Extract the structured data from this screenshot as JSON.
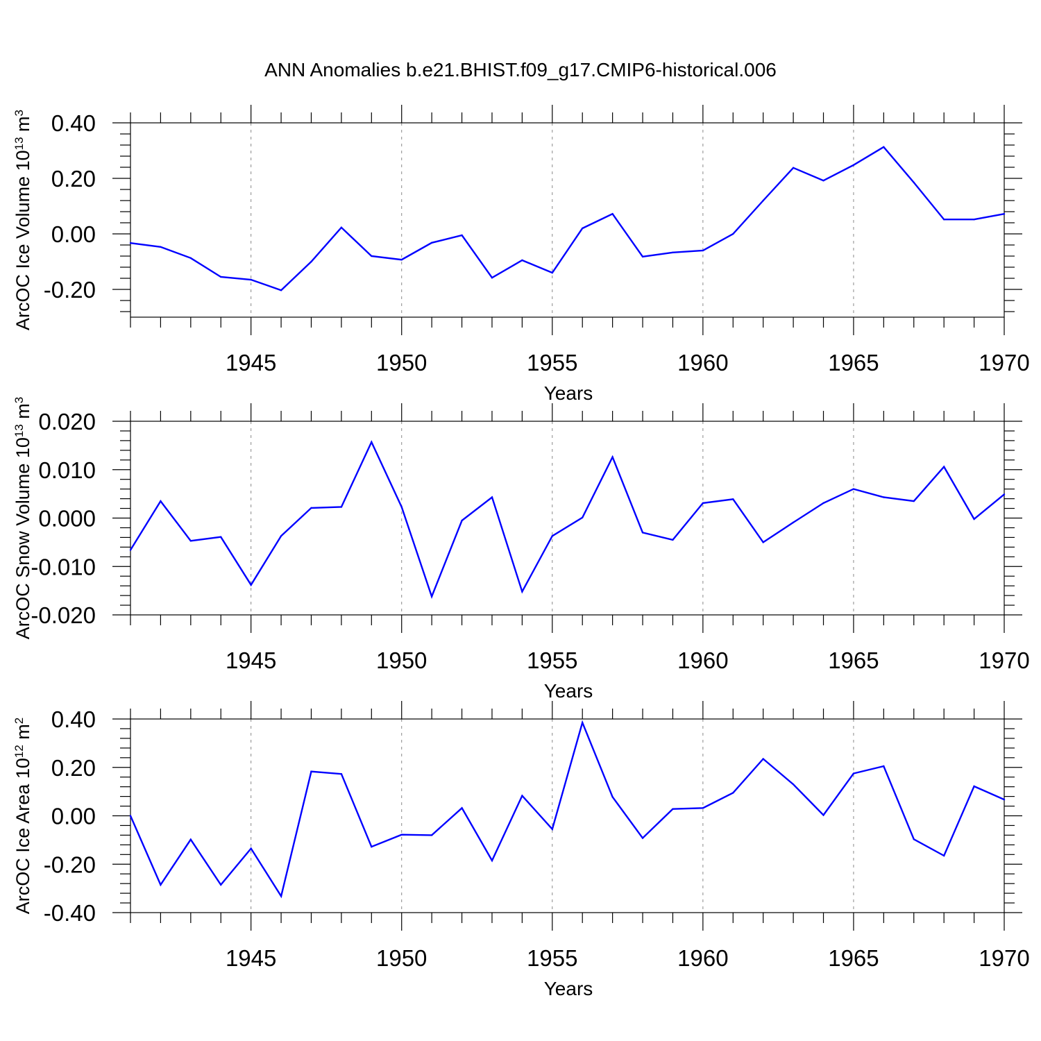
{
  "title": "ANN Anomalies b.e21.BHIST.f09_g17.CMIP6-historical.006",
  "colors": {
    "line": "#0000ff",
    "axis": "#000000",
    "vgrid": "#888888"
  },
  "chart_data": [
    {
      "type": "line",
      "ylabel": {
        "main": "ArcOC Ice Volume 10",
        "exp1": "13",
        "mid": " m",
        "exp2": "3"
      },
      "xlabel": "Years",
      "xlim": [
        1941,
        1970
      ],
      "ylim": [
        -0.3,
        0.4
      ],
      "yticks": [
        -0.2,
        0.0,
        0.2,
        0.4
      ],
      "ytick_labels": [
        "-0.20",
        "0.00",
        "0.20",
        "0.40"
      ],
      "xticks": [
        1945,
        1950,
        1955,
        1960,
        1965,
        1970
      ],
      "xtick_labels": [
        "1945",
        "1950",
        "1955",
        "1960",
        "1965",
        "1970"
      ],
      "vgrid": [
        1945,
        1950,
        1955,
        1960,
        1965
      ],
      "x": [
        1941,
        1942,
        1943,
        1944,
        1945,
        1946,
        1947,
        1948,
        1949,
        1950,
        1951,
        1952,
        1953,
        1954,
        1955,
        1956,
        1957,
        1958,
        1959,
        1960,
        1961,
        1962,
        1963,
        1964,
        1965,
        1966,
        1967,
        1968,
        1969,
        1970
      ],
      "values": [
        -0.033,
        -0.047,
        -0.087,
        -0.155,
        -0.165,
        -0.203,
        -0.1,
        0.023,
        -0.08,
        -0.093,
        -0.032,
        -0.005,
        -0.158,
        -0.095,
        -0.14,
        0.02,
        0.072,
        -0.082,
        -0.067,
        -0.06,
        0.0,
        0.12,
        0.238,
        0.192,
        0.248,
        0.313,
        0.185,
        0.052,
        0.052,
        0.072
      ]
    },
    {
      "type": "line",
      "ylabel": {
        "main": "ArcOC Snow Volume 10",
        "exp1": "13",
        "mid": " m",
        "exp2": "3"
      },
      "xlabel": "Years",
      "xlim": [
        1941,
        1970
      ],
      "ylim": [
        -0.02,
        0.02
      ],
      "yticks": [
        -0.02,
        -0.01,
        0.0,
        0.01,
        0.02
      ],
      "ytick_labels": [
        "-0.020",
        "-0.010",
        "0.000",
        "0.010",
        "0.020"
      ],
      "xticks": [
        1945,
        1950,
        1955,
        1960,
        1965,
        1970
      ],
      "xtick_labels": [
        "1945",
        "1950",
        "1955",
        "1960",
        "1965",
        "1970"
      ],
      "vgrid": [
        1945,
        1950,
        1955,
        1960,
        1965
      ],
      "x": [
        1941,
        1942,
        1943,
        1944,
        1945,
        1946,
        1947,
        1948,
        1949,
        1950,
        1951,
        1952,
        1953,
        1954,
        1955,
        1956,
        1957,
        1958,
        1959,
        1960,
        1961,
        1962,
        1963,
        1964,
        1965,
        1966,
        1967,
        1968,
        1969,
        1970
      ],
      "values": [
        -0.0066,
        0.0035,
        -0.0047,
        -0.0039,
        -0.0138,
        -0.0037,
        0.0021,
        0.0023,
        0.0157,
        0.0023,
        -0.0162,
        -0.0005,
        0.0043,
        -0.0152,
        -0.0037,
        0.0001,
        0.0126,
        -0.003,
        -0.0045,
        0.0031,
        0.0039,
        -0.005,
        -0.0009,
        0.0031,
        0.006,
        0.0043,
        0.0035,
        0.0106,
        -0.0002,
        0.0049
      ]
    },
    {
      "type": "line",
      "ylabel": {
        "main": "ArcOC Ice Area 10",
        "exp1": "12",
        "mid": " m",
        "exp2": "2"
      },
      "xlabel": "Years",
      "xlim": [
        1941,
        1970
      ],
      "ylim": [
        -0.4,
        0.4
      ],
      "yticks": [
        -0.4,
        -0.2,
        0.0,
        0.2,
        0.4
      ],
      "ytick_labels": [
        "-0.40",
        "-0.20",
        "0.00",
        "0.20",
        "0.40"
      ],
      "xticks": [
        1945,
        1950,
        1955,
        1960,
        1965,
        1970
      ],
      "xtick_labels": [
        "1945",
        "1950",
        "1955",
        "1960",
        "1965",
        "1970"
      ],
      "vgrid": [
        1945,
        1950,
        1955,
        1960,
        1965
      ],
      "x": [
        1941,
        1942,
        1943,
        1944,
        1945,
        1946,
        1947,
        1948,
        1949,
        1950,
        1951,
        1952,
        1953,
        1954,
        1955,
        1956,
        1957,
        1958,
        1959,
        1960,
        1961,
        1962,
        1963,
        1964,
        1965,
        1966,
        1967,
        1968,
        1969,
        1970
      ],
      "values": [
        0.0,
        -0.285,
        -0.098,
        -0.285,
        -0.135,
        -0.332,
        0.183,
        0.173,
        -0.128,
        -0.078,
        -0.08,
        0.032,
        -0.185,
        0.083,
        -0.055,
        0.385,
        0.078,
        -0.092,
        0.028,
        0.032,
        0.095,
        0.235,
        0.13,
        0.003,
        0.175,
        0.205,
        -0.097,
        -0.165,
        0.122,
        0.067
      ]
    }
  ]
}
